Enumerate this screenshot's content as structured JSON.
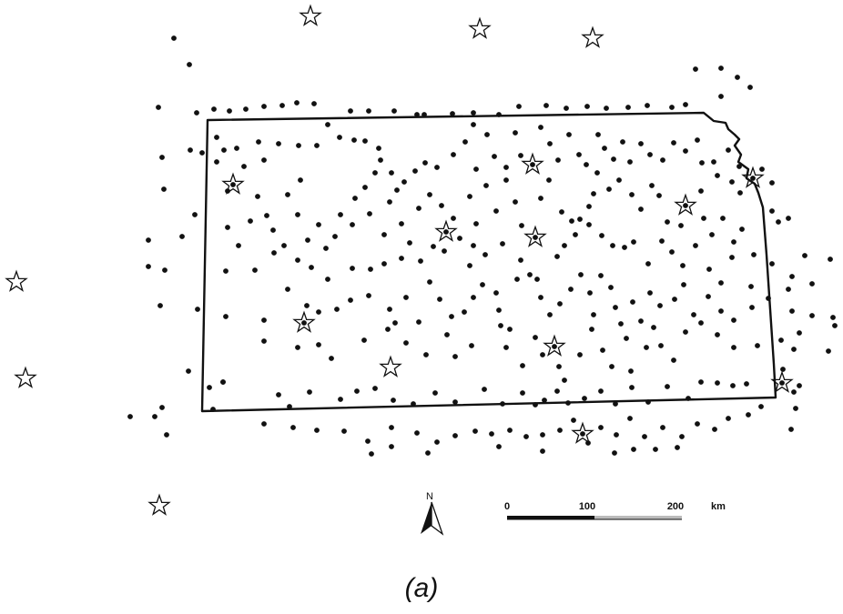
{
  "map": {
    "colors": {
      "ink": "#111111",
      "background": "#ffffff",
      "scale_light": "#bbbbbb"
    },
    "north": {
      "label": "N"
    },
    "scale_bar": {
      "ticks": [
        "0",
        "100",
        "200"
      ],
      "unit": "km"
    },
    "caption": "(a)"
  }
}
